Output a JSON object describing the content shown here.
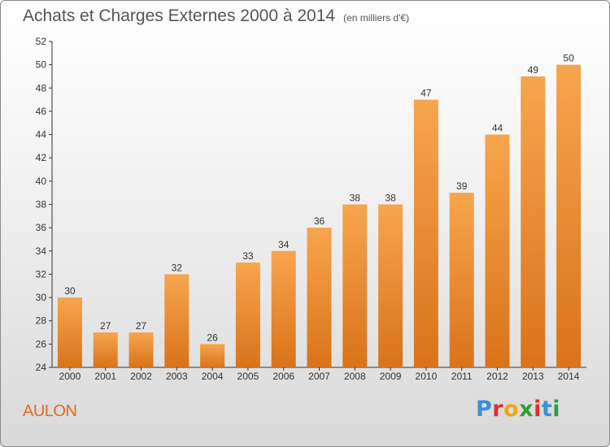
{
  "header": {
    "title": "Achats et Charges Externes 2000 à 2014",
    "unit": "(en milliers d'€)"
  },
  "footer": {
    "town": "AULON"
  },
  "logo": {
    "text": "Proxiti",
    "letters": [
      {
        "ch": "P",
        "color": "#3b8fd6"
      },
      {
        "ch": "r",
        "color": "#e0302b"
      },
      {
        "ch": "o",
        "color": "#f3a516"
      },
      {
        "ch": "x",
        "color": "#2f9e3b"
      },
      {
        "ch": "i",
        "color": "#e0302b"
      },
      {
        "ch": "t",
        "color": "#3b8fd6"
      },
      {
        "ch": "i",
        "color": "#2f9e3b"
      }
    ]
  },
  "colors": {
    "bar_light": "#f7a54e",
    "bar_dark": "#d9731a",
    "axis": "#333333",
    "grid": "#e6e6e6"
  },
  "chart_data": {
    "type": "bar",
    "title": "Achats et Charges Externes 2000 à 2014",
    "subtitle": "(en milliers d'€)",
    "categories": [
      "2000",
      "2001",
      "2002",
      "2003",
      "2004",
      "2005",
      "2006",
      "2007",
      "2008",
      "2009",
      "2010",
      "2011",
      "2012",
      "2013",
      "2014"
    ],
    "values": [
      30,
      27,
      27,
      32,
      26,
      33,
      34,
      36,
      38,
      38,
      47,
      39,
      44,
      49,
      50
    ],
    "ylim": [
      24,
      52
    ],
    "yticks": [
      24,
      26,
      28,
      30,
      32,
      34,
      36,
      38,
      40,
      42,
      44,
      46,
      48,
      50,
      52
    ],
    "grid": false,
    "data_labels": true
  }
}
